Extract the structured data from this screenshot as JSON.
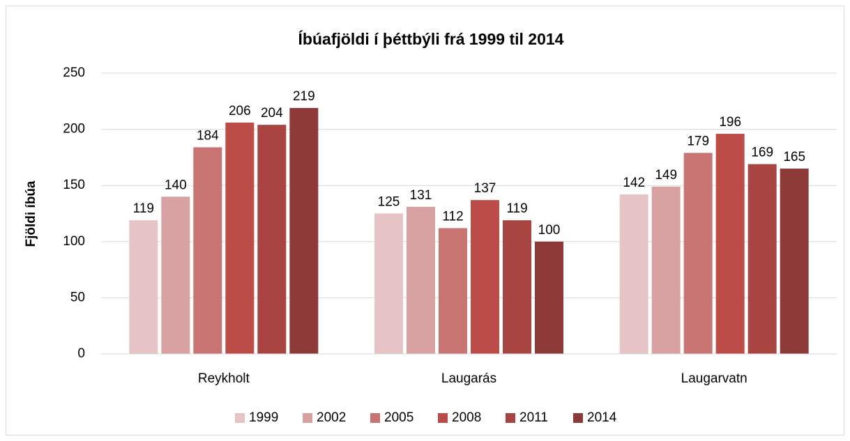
{
  "chart_data": {
    "type": "bar",
    "title": "Íbúafjöldi í þéttbýli frá 1999 til 2014",
    "y_label": "Fjöldi íbúa",
    "categories": [
      "Reykholt",
      "Laugarás",
      "Laugarvatn"
    ],
    "series": [
      {
        "name": "1999",
        "color": "#e6c3c4",
        "values": [
          119,
          125,
          142
        ]
      },
      {
        "name": "2002",
        "color": "#d8a1a1",
        "values": [
          140,
          131,
          149
        ]
      },
      {
        "name": "2005",
        "color": "#c87472",
        "values": [
          184,
          112,
          179
        ]
      },
      {
        "name": "2008",
        "color": "#bb4c48",
        "values": [
          206,
          137,
          196
        ]
      },
      {
        "name": "2011",
        "color": "#a84442",
        "values": [
          204,
          119,
          169
        ]
      },
      {
        "name": "2014",
        "color": "#8e3a39",
        "values": [
          219,
          100,
          165
        ]
      }
    ],
    "ylim": [
      0,
      250
    ],
    "yticks": [
      0,
      50,
      100,
      150,
      200,
      250
    ],
    "grid": true,
    "legend": "bottom"
  }
}
